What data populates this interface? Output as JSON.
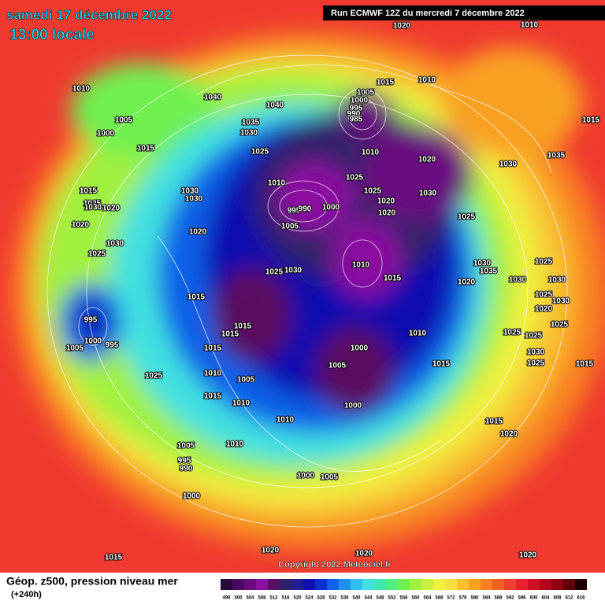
{
  "header": {
    "title": "samedi 17 décembre 2022",
    "subtitle": "13:00 locale",
    "run": "Run ECMWF 12Z du mercredi 7 décembre 2022"
  },
  "map": {
    "isobar_labels": [
      1020,
      1010,
      1010,
      1015,
      1010,
      1040,
      1040,
      1005,
      1000,
      995,
      990,
      985,
      1015,
      1005,
      1000,
      1035,
      1030,
      1015,
      1025,
      1010,
      1020,
      1035,
      1030,
      1025,
      1010,
      1030,
      1025,
      1030,
      1015,
      1030,
      1000,
      995,
      990,
      1020,
      1020,
      1025,
      1030,
      1020,
      1025,
      1020,
      1005,
      1020,
      1030,
      1025,
      1010,
      1030,
      1025,
      1035,
      1025,
      1030,
      1015,
      1020,
      1030,
      1030,
      1015,
      1025,
      1030,
      1020,
      995,
      1015,
      1025,
      1015,
      1010,
      1000,
      995,
      1025,
      1025,
      1005,
      1015,
      1000,
      1030,
      1005,
      1025,
      1015,
      1015,
      1010,
      1025,
      1005,
      1015,
      1010,
      1000,
      1010,
      1015,
      1020,
      1005,
      1010,
      995,
      990,
      1000,
      1005,
      1000,
      1020,
      1020,
      1015,
      1020
    ]
  },
  "footer": {
    "copyright": "Copyright 2022 Meteociel.fr",
    "legend_title": "Géop. z500, pression niveau mer",
    "lead_time": "(+240h)"
  },
  "legend": {
    "ticks": [
      496,
      500,
      504,
      508,
      512,
      516,
      520,
      524,
      528,
      532,
      536,
      540,
      544,
      548,
      552,
      556,
      560,
      564,
      568,
      572,
      576,
      580,
      584,
      588,
      592,
      596,
      600,
      604,
      608,
      612,
      616
    ],
    "colors": [
      "#2a0a3a",
      "#4a0a5e",
      "#6a0a80",
      "#8a10a0",
      "#5a1060",
      "#30206a",
      "#202090",
      "#1010b0",
      "#0a30d0",
      "#1060e8",
      "#2090f0",
      "#30c0f0",
      "#40e0e0",
      "#40e8b0",
      "#50f080",
      "#70f050",
      "#a0f040",
      "#c8f040",
      "#f0f040",
      "#f8e040",
      "#f8c030",
      "#f8a020",
      "#f88020",
      "#f06020",
      "#f04030",
      "#e82030",
      "#d01020",
      "#b00818",
      "#900010",
      "#600008",
      "#200000"
    ]
  }
}
